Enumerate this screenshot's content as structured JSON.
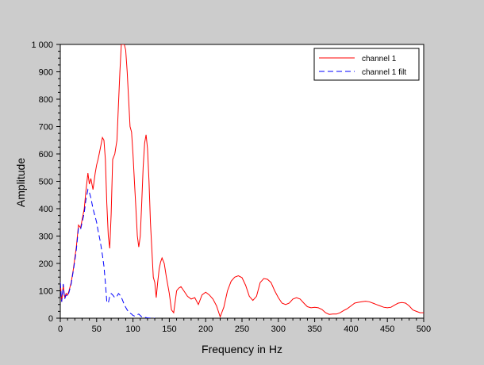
{
  "chart_data": {
    "type": "line",
    "xlabel": "Frequency in Hz",
    "ylabel": "Amplitude",
    "xlim": [
      0,
      500
    ],
    "ylim": [
      0,
      1000
    ],
    "xticks": [
      "0",
      "50",
      "100",
      "150",
      "200",
      "250",
      "300",
      "350",
      "400",
      "450",
      "500"
    ],
    "yticks": [
      "0",
      "100",
      "200",
      "300",
      "400",
      "500",
      "600",
      "700",
      "800",
      "900",
      "1 000"
    ],
    "grid": false,
    "legend_position": "top-right",
    "series": [
      {
        "name": "channel 1",
        "color": "#ff0000",
        "dash": "solid",
        "x": [
          0,
          2,
          4,
          6,
          8,
          10,
          12,
          15,
          18,
          20,
          22,
          25,
          28,
          30,
          33,
          35,
          38,
          40,
          42,
          45,
          48,
          50,
          52,
          55,
          58,
          60,
          62,
          64,
          66,
          68,
          70,
          72,
          75,
          78,
          80,
          82,
          84,
          86,
          88,
          90,
          92,
          94,
          96,
          98,
          100,
          102,
          104,
          106,
          108,
          110,
          112,
          114,
          116,
          118,
          120,
          122,
          124,
          126,
          128,
          130,
          132,
          134,
          136,
          138,
          140,
          143,
          146,
          150,
          153,
          156,
          160,
          163,
          166,
          170,
          175,
          180,
          185,
          190,
          195,
          200,
          205,
          210,
          215,
          220,
          225,
          230,
          235,
          240,
          245,
          250,
          255,
          260,
          265,
          270,
          275,
          280,
          285,
          290,
          295,
          300,
          305,
          310,
          315,
          320,
          325,
          330,
          335,
          340,
          345,
          350,
          355,
          360,
          365,
          370,
          375,
          380,
          385,
          390,
          395,
          400,
          405,
          410,
          415,
          420,
          425,
          430,
          435,
          440,
          445,
          450,
          455,
          460,
          465,
          470,
          475,
          480,
          485,
          490,
          495,
          500
        ],
        "y": [
          130,
          60,
          120,
          75,
          90,
          85,
          100,
          130,
          180,
          220,
          260,
          340,
          330,
          360,
          400,
          460,
          530,
          490,
          510,
          470,
          530,
          560,
          580,
          620,
          660,
          650,
          580,
          420,
          300,
          255,
          380,
          580,
          600,
          650,
          780,
          900,
          1000,
          1000,
          1000,
          980,
          900,
          800,
          700,
          680,
          600,
          500,
          400,
          300,
          260,
          300,
          420,
          550,
          640,
          670,
          620,
          500,
          350,
          250,
          150,
          130,
          75,
          130,
          180,
          205,
          220,
          200,
          150,
          90,
          30,
          20,
          100,
          110,
          115,
          100,
          80,
          70,
          75,
          50,
          85,
          95,
          85,
          70,
          45,
          5,
          40,
          100,
          135,
          150,
          155,
          148,
          120,
          80,
          65,
          80,
          130,
          145,
          142,
          130,
          100,
          75,
          55,
          50,
          55,
          70,
          75,
          70,
          55,
          42,
          38,
          40,
          38,
          32,
          20,
          14,
          15,
          15,
          20,
          28,
          35,
          45,
          55,
          58,
          60,
          62,
          60,
          55,
          50,
          45,
          40,
          38,
          40,
          48,
          55,
          57,
          55,
          45,
          30,
          25,
          20,
          20
        ]
      },
      {
        "name": "channel 1 filt",
        "color": "#0000ff",
        "dash": "dashed",
        "x": [
          0,
          2,
          4,
          6,
          8,
          10,
          12,
          15,
          18,
          20,
          22,
          25,
          28,
          30,
          33,
          35,
          38,
          40,
          42,
          45,
          48,
          50,
          52,
          55,
          58,
          60,
          62,
          64,
          66,
          68,
          70,
          72,
          75,
          78,
          80,
          82,
          85,
          88,
          90,
          92,
          95,
          98,
          100,
          102,
          105,
          108,
          110,
          112,
          115,
          118,
          120,
          122,
          125,
          128,
          130
        ],
        "y": [
          130,
          60,
          125,
          70,
          85,
          80,
          95,
          125,
          175,
          210,
          250,
          330,
          325,
          350,
          385,
          430,
          470,
          460,
          440,
          400,
          370,
          350,
          320,
          280,
          230,
          190,
          130,
          60,
          55,
          80,
          90,
          85,
          75,
          80,
          90,
          85,
          70,
          50,
          40,
          30,
          20,
          15,
          10,
          8,
          12,
          15,
          10,
          5,
          3,
          2,
          1,
          1,
          0,
          0,
          0
        ]
      }
    ]
  }
}
